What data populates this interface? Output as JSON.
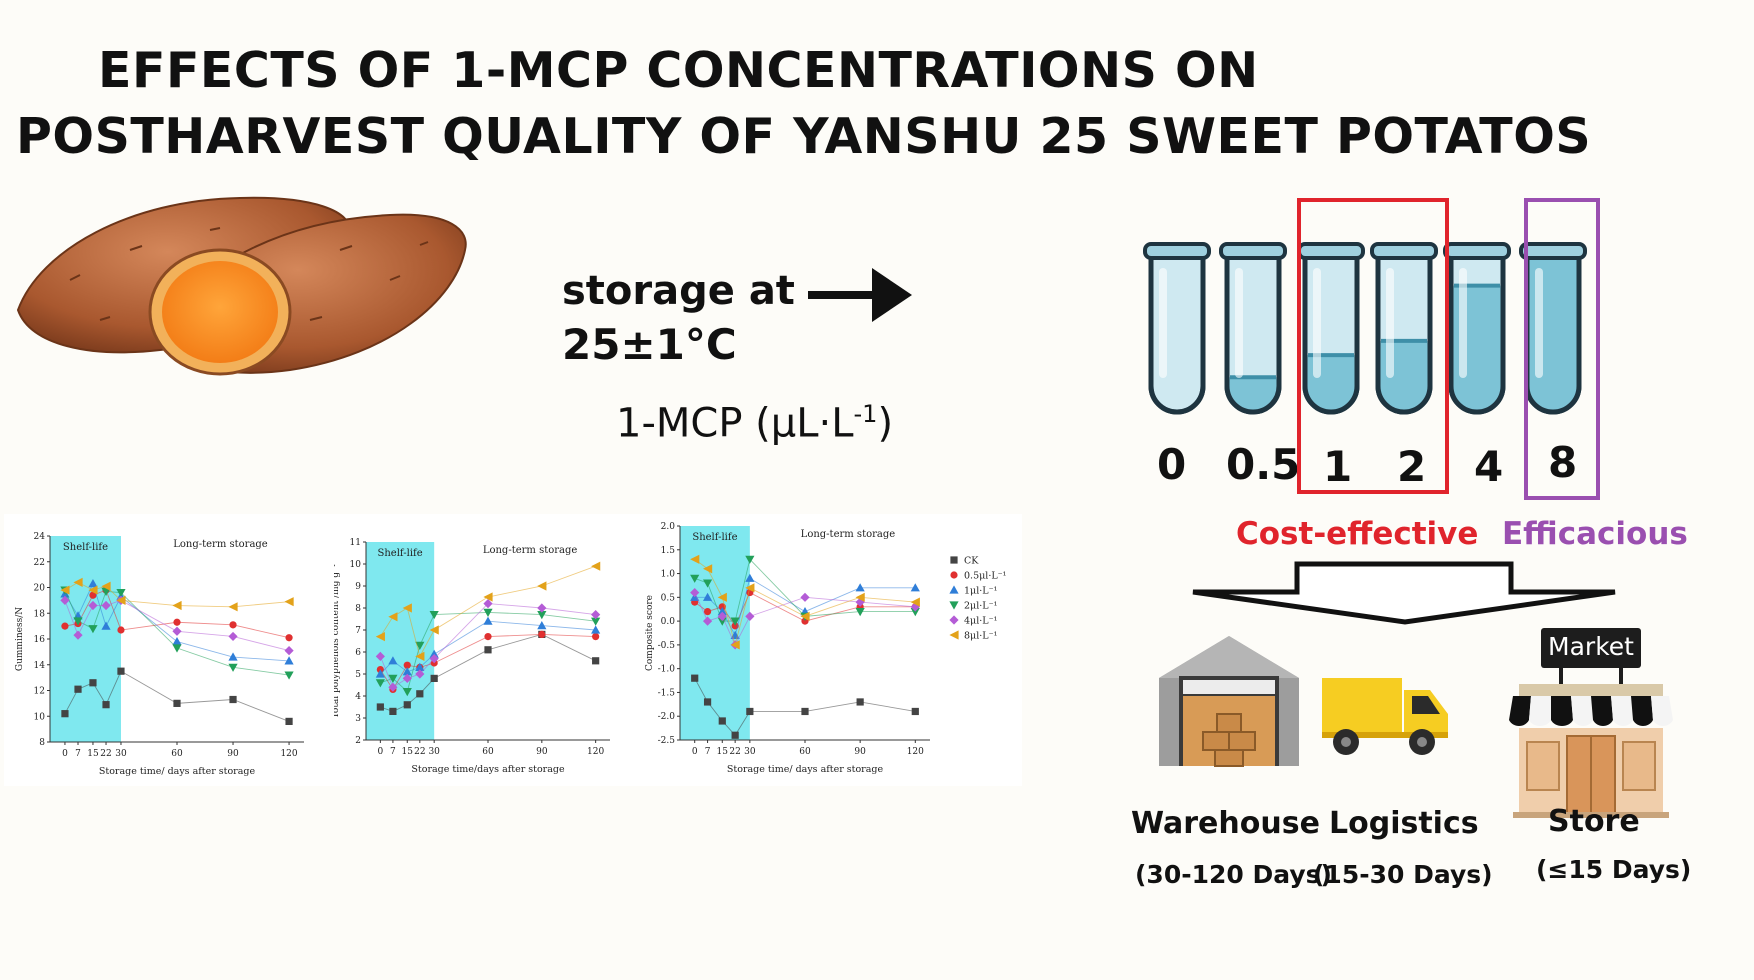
{
  "title": {
    "line1": "EFFECTS OF 1-MCP CONCENTRATIONS ON",
    "line2": "POSTHARVEST QUALITY OF YANSHU 25  SWEET POTATOS"
  },
  "storage": {
    "line1": "storage at",
    "line2": "25±1°C"
  },
  "mcp_label": "1-MCP (μL·L",
  "mcp_sup": "-1",
  "mcp_close": ")",
  "concentrations": [
    "0",
    "0.5",
    "1",
    "2",
    "4",
    "8"
  ],
  "tube_fill_fraction": [
    0,
    0.22,
    0.36,
    0.45,
    0.8,
    1.0
  ],
  "labels": {
    "cost_effective": "Cost-effective",
    "efficacious": "Efficacious",
    "market": "Market"
  },
  "colors": {
    "cost_effective": "#e0242c",
    "efficacious": "#9a4fb0",
    "shelf_life_band": "#7fe8ef",
    "tube_liquid": "#7dc3d6",
    "tube_glass": "#cfe9f1"
  },
  "channels": [
    {
      "name": "Warehouse",
      "period": "(30-120 Days)"
    },
    {
      "name": "Logistics",
      "period": "(15-30 Days)"
    },
    {
      "name": "Store",
      "period": "(≤15 Days)"
    }
  ],
  "icons": [
    "sweet-potato-icon",
    "arrow-right-icon",
    "test-tube-icon",
    "warehouse-icon",
    "truck-icon",
    "market-store-icon"
  ],
  "chart_data": [
    {
      "type": "line",
      "title": "",
      "ylabel": "Gumminess/N",
      "xlabel": "Storage time/ days after storage",
      "band_label": "Shelf-life",
      "region_label": "Long-term storage",
      "ylim": [
        8,
        24
      ],
      "yticks": [
        8,
        10,
        12,
        14,
        16,
        18,
        20,
        22,
        24
      ],
      "x": [
        0,
        7,
        15,
        22,
        30,
        60,
        90,
        120
      ],
      "xticks": [
        "0",
        "7",
        "15",
        "22",
        "30",
        "60",
        "90",
        "120"
      ],
      "shelf_life_range": [
        0,
        30
      ],
      "series": [
        {
          "name": "CK",
          "values": [
            10.2,
            12.1,
            12.6,
            10.9,
            13.5,
            11.0,
            11.3,
            9.6
          ]
        },
        {
          "name": "0.5μl·L⁻¹",
          "values": [
            17.0,
            17.2,
            19.4,
            19.8,
            16.7,
            17.3,
            17.1,
            16.1
          ]
        },
        {
          "name": "1μl·L⁻¹",
          "values": [
            19.5,
            17.8,
            20.3,
            17.0,
            19.3,
            15.8,
            14.6,
            14.3
          ]
        },
        {
          "name": "2μl·L⁻¹",
          "values": [
            19.8,
            17.4,
            16.8,
            19.7,
            19.6,
            15.3,
            13.8,
            13.2
          ]
        },
        {
          "name": "4μl·L⁻¹",
          "values": [
            19.0,
            16.3,
            18.6,
            18.6,
            19.0,
            16.6,
            16.2,
            15.1
          ]
        },
        {
          "name": "8μl·L⁻¹",
          "values": [
            19.8,
            20.4,
            19.8,
            20.1,
            19.0,
            18.6,
            18.5,
            18.9
          ]
        }
      ]
    },
    {
      "type": "line",
      "title": "",
      "ylabel": "Total polyphenols content /mg g⁻¹",
      "xlabel": "Storage time/days after storage",
      "band_label": "Shelf-life",
      "region_label": "Long-term storage",
      "ylim": [
        2,
        11
      ],
      "yticks": [
        2,
        3,
        4,
        5,
        6,
        7,
        8,
        9,
        10,
        11
      ],
      "x": [
        0,
        7,
        15,
        22,
        30,
        60,
        90,
        120
      ],
      "xticks": [
        "0",
        "7",
        "15",
        "22",
        "30",
        "60",
        "90",
        "120"
      ],
      "shelf_life_range": [
        0,
        30
      ],
      "series": [
        {
          "name": "CK",
          "values": [
            3.5,
            3.3,
            3.6,
            4.1,
            4.8,
            6.1,
            6.8,
            5.6
          ]
        },
        {
          "name": "0.5μl·L⁻¹",
          "values": [
            5.2,
            4.3,
            5.4,
            5.3,
            5.5,
            6.7,
            6.8,
            6.7
          ]
        },
        {
          "name": "1μl·L⁻¹",
          "values": [
            5.0,
            5.6,
            5.1,
            5.3,
            5.9,
            7.4,
            7.2,
            7.0
          ]
        },
        {
          "name": "2μl·L⁻¹",
          "values": [
            4.6,
            4.8,
            4.2,
            6.3,
            7.7,
            7.8,
            7.7,
            7.4
          ]
        },
        {
          "name": "4μl·L⁻¹",
          "values": [
            5.8,
            4.4,
            4.8,
            5.0,
            5.7,
            8.2,
            8.0,
            7.7
          ]
        },
        {
          "name": "8μl·L⁻¹",
          "values": [
            6.7,
            7.6,
            8.0,
            5.8,
            7.0,
            8.5,
            9.0,
            9.9
          ]
        }
      ]
    },
    {
      "type": "line",
      "title": "",
      "ylabel": "Composite score",
      "xlabel": "Storage time/ days after storage",
      "band_label": "Shelf-life",
      "region_label": "Long-term storage",
      "ylim": [
        -2.5,
        2.0
      ],
      "yticks": [
        -2.5,
        -2.0,
        -1.5,
        -1.0,
        -0.5,
        0.0,
        0.5,
        1.0,
        1.5,
        2.0
      ],
      "x": [
        0,
        7,
        15,
        22,
        30,
        60,
        90,
        120
      ],
      "xticks": [
        "0",
        "7",
        "15",
        "22",
        "30",
        "60",
        "90",
        "120"
      ],
      "shelf_life_range": [
        0,
        30
      ],
      "legend": "right",
      "series": [
        {
          "name": "CK",
          "values": [
            -1.2,
            -1.7,
            -2.1,
            -2.4,
            -1.9,
            -1.9,
            -1.7,
            -1.9
          ]
        },
        {
          "name": "0.5μl·L⁻¹",
          "values": [
            0.4,
            0.2,
            0.3,
            -0.1,
            0.6,
            0.0,
            0.3,
            0.3
          ]
        },
        {
          "name": "1μl·L⁻¹",
          "values": [
            0.5,
            0.5,
            0.2,
            -0.3,
            0.9,
            0.2,
            0.7,
            0.7
          ]
        },
        {
          "name": "2μl·L⁻¹",
          "values": [
            0.9,
            0.8,
            0.0,
            0.0,
            1.3,
            0.1,
            0.2,
            0.2
          ]
        },
        {
          "name": "4μl·L⁻¹",
          "values": [
            0.6,
            0.0,
            0.1,
            -0.5,
            0.1,
            0.5,
            0.4,
            0.3
          ]
        },
        {
          "name": "8μl·L⁻¹",
          "values": [
            1.3,
            1.1,
            0.5,
            -0.5,
            0.7,
            0.1,
            0.5,
            0.4
          ]
        }
      ]
    }
  ],
  "series_styles": [
    {
      "color": "#444444",
      "marker": "square"
    },
    {
      "color": "#e03030",
      "marker": "circle"
    },
    {
      "color": "#2f7ed8",
      "marker": "triangle-up"
    },
    {
      "color": "#22a05a",
      "marker": "triangle-down"
    },
    {
      "color": "#b45cd6",
      "marker": "diamond"
    },
    {
      "color": "#e3a21a",
      "marker": "triangle-left"
    }
  ]
}
